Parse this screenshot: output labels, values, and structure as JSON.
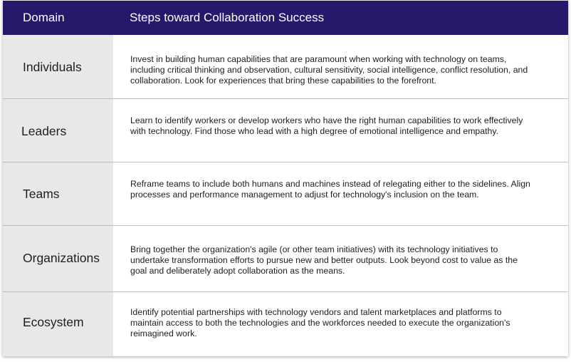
{
  "header": {
    "domain": "Domain",
    "steps": "Steps toward Collaboration Success"
  },
  "rows": [
    {
      "domain": "Individuals",
      "text": "Invest in building human capabilities that are paramount when working with technology on teams, including critical thinking and observation, cultural sensitivity, social intelligence, conflict resolution, and collaboration. Look for experiences that bring these capabilities to the forefront."
    },
    {
      "domain": "Leaders",
      "text": "Learn to identify workers or develop workers who have the right human capabilities to work effectively with technology. Find those who lead with a high degree of emotional intelligence and empathy."
    },
    {
      "domain": "Teams",
      "text": "Reframe teams to include both humans and machines instead of relegating either to the sidelines. Align processes and performance management to adjust for technology's inclusion on the team."
    },
    {
      "domain": "Organizations",
      "text": "Bring together the organization's agile (or other team initiatives) with its technology initiatives to undertake transformation efforts to pursue new and better outputs. Look beyond cost to value as the goal and deliberately adopt collaboration as the means."
    },
    {
      "domain": "Ecosystem",
      "text": "Identify potential partnerships with technology vendors and talent marketplaces and platforms to maintain access to both the technologies and the workforces needed to execute the organization's reimagined work."
    }
  ]
}
